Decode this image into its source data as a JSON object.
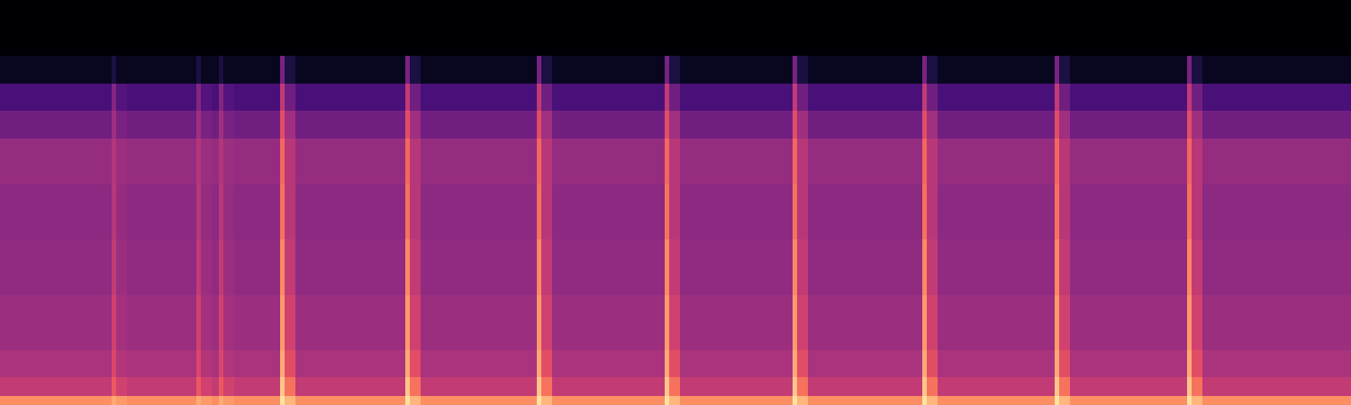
{
  "chart_data": {
    "type": "spectrogram",
    "tick_labels": false,
    "color": "magma",
    "color_range": [
      -100,
      -15
    ],
    "xlim": [
      0,
      15
    ],
    "ylim": [
      0,
      22.05
    ],
    "time_edges": [
      0,
      1.24,
      1.29,
      1.41,
      2.18,
      2.23,
      2.35,
      2.43,
      2.48,
      2.6,
      3.11,
      3.16,
      3.28,
      4.5,
      4.55,
      4.67,
      5.96,
      6.01,
      6.13,
      7.38,
      7.43,
      7.55,
      8.8,
      8.85,
      8.97,
      10.24,
      10.29,
      10.41,
      11.71,
      11.76,
      11.88,
      13.18,
      13.23,
      13.35,
      15
    ],
    "frequency_edges": [
      0,
      0.5,
      1.5,
      3,
      6,
      9,
      12,
      14.5,
      16,
      17.5,
      19,
      22.05
    ],
    "cells": [
      [
        -35,
        -30,
        -33,
        -35,
        -30,
        -33,
        -35,
        -30,
        -33,
        -35,
        -20,
        -28,
        -35,
        -20,
        -28,
        -35,
        -20,
        -28,
        -35,
        -20,
        -28,
        -35,
        -20,
        -28,
        -35,
        -20,
        -28,
        -35,
        -20,
        -28,
        -35,
        -20,
        -28,
        -35
      ],
      [
        -55,
        -45,
        -52,
        -55,
        -45,
        -52,
        -55,
        -45,
        -52,
        -55,
        -25,
        -40,
        -55,
        -25,
        -40,
        -55,
        -25,
        -40,
        -55,
        -25,
        -40,
        -55,
        -25,
        -40,
        -55,
        -25,
        -40,
        -55,
        -25,
        -40,
        -55,
        -25,
        -40,
        -55
      ],
      [
        -60,
        -50,
        -58,
        -60,
        -50,
        -58,
        -60,
        -50,
        -58,
        -60,
        -30,
        -48,
        -60,
        -30,
        -48,
        -60,
        -30,
        -48,
        -60,
        -30,
        -48,
        -60,
        -30,
        -48,
        -60,
        -30,
        -48,
        -60,
        -30,
        -48,
        -60,
        -30,
        -48,
        -60
      ],
      [
        -63,
        -52,
        -61,
        -63,
        -52,
        -61,
        -63,
        -52,
        -61,
        -63,
        -33,
        -52,
        -63,
        -33,
        -52,
        -63,
        -33,
        -52,
        -63,
        -33,
        -52,
        -63,
        -33,
        -52,
        -63,
        -33,
        -52,
        -63,
        -33,
        -52,
        -63,
        -33,
        -52,
        -63
      ],
      [
        -65,
        -55,
        -63,
        -65,
        -55,
        -63,
        -65,
        -55,
        -63,
        -65,
        -36,
        -55,
        -65,
        -36,
        -55,
        -65,
        -36,
        -55,
        -65,
        -36,
        -55,
        -65,
        -36,
        -55,
        -65,
        -36,
        -55,
        -65,
        -36,
        -55,
        -65,
        -36,
        -55,
        -65
      ],
      [
        -66,
        -57,
        -64,
        -66,
        -57,
        -64,
        -66,
        -57,
        -64,
        -66,
        -40,
        -57,
        -66,
        -40,
        -57,
        -66,
        -40,
        -57,
        -66,
        -40,
        -57,
        -66,
        -40,
        -57,
        -66,
        -40,
        -57,
        -66,
        -40,
        -57,
        -66,
        -40,
        -57,
        -66
      ],
      [
        -64,
        -58,
        -63,
        -64,
        -58,
        -63,
        -64,
        -58,
        -63,
        -64,
        -42,
        -57,
        -64,
        -42,
        -57,
        -64,
        -42,
        -57,
        -64,
        -42,
        -57,
        -64,
        -42,
        -57,
        -64,
        -42,
        -57,
        -64,
        -42,
        -57,
        -64,
        -42,
        -57,
        -64
      ],
      [
        -72,
        -62,
        -70,
        -72,
        -62,
        -70,
        -72,
        -62,
        -70,
        -72,
        -48,
        -62,
        -72,
        -48,
        -62,
        -72,
        -48,
        -62,
        -72,
        -48,
        -62,
        -72,
        -48,
        -62,
        -72,
        -48,
        -62,
        -72,
        -48,
        -62,
        -72,
        -48,
        -62,
        -72
      ],
      [
        -80,
        -68,
        -78,
        -80,
        -68,
        -78,
        -80,
        -68,
        -78,
        -80,
        -55,
        -72,
        -80,
        -55,
        -72,
        -80,
        -55,
        -72,
        -80,
        -55,
        -72,
        -80,
        -55,
        -72,
        -80,
        -55,
        -72,
        -80,
        -55,
        -72,
        -80,
        -55,
        -72,
        -80
      ],
      [
        -95,
        -90,
        -95,
        -95,
        -90,
        -95,
        -95,
        -90,
        -95,
        -95,
        -70,
        -90,
        -95,
        -70,
        -90,
        -95,
        -70,
        -90,
        -95,
        -70,
        -90,
        -95,
        -70,
        -90,
        -95,
        -70,
        -90,
        -95,
        -70,
        -90,
        -95,
        -70,
        -90,
        -95
      ],
      [
        -100,
        -100,
        -100,
        -100,
        -100,
        -100,
        -100,
        -100,
        -100,
        -100,
        -100,
        -100,
        -100,
        -100,
        -100,
        -100,
        -100,
        -100,
        -100,
        -100,
        -100,
        -100,
        -100,
        -100,
        -100,
        -100,
        -100,
        -100,
        -100,
        -100,
        -100,
        -100,
        -100,
        -100
      ]
    ]
  }
}
